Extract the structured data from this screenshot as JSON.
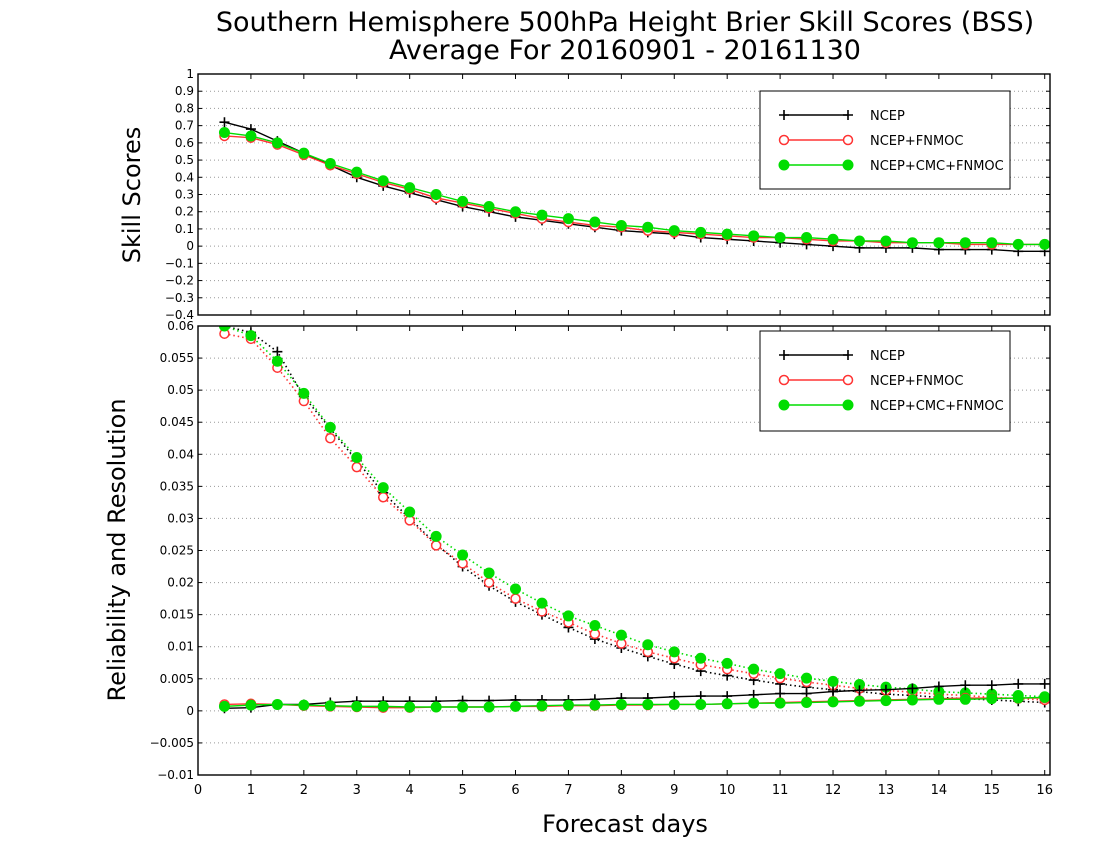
{
  "chart_data": [
    {
      "type": "line",
      "title": "Southern Hemisphere 500hPa Height Brier Skill Scores (BSS)",
      "subtitle": "Average For 20160901 - 20161130",
      "xlabel": "Forecast days",
      "ylabel": "Skill Scores",
      "xlim": [
        0,
        16.1
      ],
      "ylim": [
        -0.4,
        1
      ],
      "x_ticks": [
        "0",
        "1",
        "2",
        "3",
        "4",
        "5",
        "6",
        "7",
        "8",
        "9",
        "10",
        "11",
        "12",
        "13",
        "14",
        "15",
        "16"
      ],
      "y_ticks": [
        "1",
        "0.9",
        "0.8",
        "0.7",
        "0.6",
        "0.5",
        "0.4",
        "0.3",
        "0.2",
        "0.1",
        "0",
        "−0.1",
        "−0.2",
        "−0.3",
        "−0.4"
      ],
      "grid": "horizontal dotted",
      "legend_position": "top-right",
      "x": [
        0.5,
        1,
        1.5,
        2,
        2.5,
        3,
        3.5,
        4,
        4.5,
        5,
        5.5,
        6,
        6.5,
        7,
        7.5,
        8,
        8.5,
        9,
        9.5,
        10,
        10.5,
        11,
        11.5,
        12,
        12.5,
        13,
        13.5,
        14,
        14.5,
        15,
        15.5,
        16
      ],
      "series": [
        {
          "name": "NCEP",
          "color": "#000000",
          "marker": "plus",
          "values": [
            0.72,
            0.68,
            0.61,
            0.54,
            0.47,
            0.4,
            0.35,
            0.31,
            0.27,
            0.23,
            0.2,
            0.17,
            0.15,
            0.13,
            0.11,
            0.09,
            0.08,
            0.07,
            0.05,
            0.04,
            0.03,
            0.02,
            0.01,
            0.0,
            -0.01,
            -0.01,
            -0.01,
            -0.02,
            -0.02,
            -0.02,
            -0.03,
            -0.03
          ]
        },
        {
          "name": "NCEP+FNMOC",
          "color": "#ff3333",
          "marker": "open-circle",
          "values": [
            0.64,
            0.63,
            0.59,
            0.53,
            0.47,
            0.42,
            0.37,
            0.33,
            0.28,
            0.25,
            0.22,
            0.19,
            0.16,
            0.14,
            0.12,
            0.11,
            0.09,
            0.08,
            0.07,
            0.06,
            0.05,
            0.05,
            0.04,
            0.03,
            0.03,
            0.02,
            0.02,
            0.02,
            0.01,
            0.01,
            0.01,
            0.01
          ]
        },
        {
          "name": "NCEP+CMC+FNMOC",
          "color": "#00dd00",
          "marker": "filled-circle",
          "values": [
            0.66,
            0.64,
            0.6,
            0.54,
            0.48,
            0.43,
            0.38,
            0.34,
            0.3,
            0.26,
            0.23,
            0.2,
            0.18,
            0.16,
            0.14,
            0.12,
            0.11,
            0.09,
            0.08,
            0.07,
            0.06,
            0.05,
            0.05,
            0.04,
            0.03,
            0.03,
            0.02,
            0.02,
            0.02,
            0.02,
            0.01,
            0.01
          ]
        }
      ]
    },
    {
      "type": "line",
      "xlabel": "Forecast days",
      "ylabel": "Reliability and Resolution",
      "xlim": [
        0,
        16.1
      ],
      "ylim": [
        -0.01,
        0.06
      ],
      "x_ticks": [
        "0",
        "1",
        "2",
        "3",
        "4",
        "5",
        "6",
        "7",
        "8",
        "9",
        "10",
        "11",
        "12",
        "13",
        "14",
        "15",
        "16"
      ],
      "y_ticks": [
        "0.06",
        "0.055",
        "0.05",
        "0.045",
        "0.04",
        "0.035",
        "0.03",
        "0.025",
        "0.02",
        "0.015",
        "0.01",
        "0.005",
        "0",
        "−0.005",
        "−0.01"
      ],
      "grid": "horizontal dotted",
      "legend_position": "top-right",
      "x": [
        0.5,
        1,
        1.5,
        2,
        2.5,
        3,
        3.5,
        4,
        4.5,
        5,
        5.5,
        6,
        6.5,
        7,
        7.5,
        8,
        8.5,
        9,
        9.5,
        10,
        10.5,
        11,
        11.5,
        12,
        12.5,
        13,
        13.5,
        14,
        14.5,
        15,
        15.5,
        16
      ],
      "series": [
        {
          "name": "NCEP",
          "color": "#000000",
          "marker": "plus",
          "component": "resolution",
          "line": "dotted",
          "values": [
            0.06,
            0.059,
            0.056,
            0.049,
            0.044,
            0.039,
            0.034,
            0.03,
            0.026,
            0.0225,
            0.0195,
            0.017,
            0.015,
            0.013,
            0.0112,
            0.0098,
            0.0085,
            0.0073,
            0.0062,
            0.0055,
            0.0048,
            0.0042,
            0.0037,
            0.0033,
            0.003,
            0.0026,
            0.0024,
            0.0021,
            0.0019,
            0.0017,
            0.0015,
            0.0013
          ]
        },
        {
          "name": "NCEP+FNMOC",
          "color": "#ff3333",
          "marker": "open-circle",
          "component": "resolution",
          "line": "dotted",
          "values": [
            0.0588,
            0.058,
            0.0535,
            0.0483,
            0.0425,
            0.038,
            0.0333,
            0.0297,
            0.0258,
            0.023,
            0.02,
            0.0175,
            0.0155,
            0.0138,
            0.012,
            0.0105,
            0.0092,
            0.0082,
            0.0072,
            0.0065,
            0.0058,
            0.0051,
            0.0045,
            0.004,
            0.0035,
            0.0032,
            0.0029,
            0.0026,
            0.0024,
            0.0021,
            0.0019,
            0.0017
          ]
        },
        {
          "name": "NCEP+CMC+FNMOC",
          "color": "#00dd00",
          "marker": "filled-circle",
          "component": "resolution",
          "line": "dotted",
          "values": [
            0.06,
            0.0585,
            0.0545,
            0.0495,
            0.0442,
            0.0395,
            0.0348,
            0.031,
            0.0272,
            0.0243,
            0.0215,
            0.019,
            0.0168,
            0.0148,
            0.0133,
            0.0118,
            0.0103,
            0.0092,
            0.0082,
            0.0074,
            0.0065,
            0.0058,
            0.0051,
            0.0046,
            0.0041,
            0.0037,
            0.0034,
            0.003,
            0.0028,
            0.0026,
            0.0024,
            0.0022
          ]
        },
        {
          "name": "NCEP",
          "color": "#000000",
          "marker": "plus",
          "component": "reliability",
          "line": "solid",
          "values": [
            0.0004,
            0.0005,
            0.001,
            0.001,
            0.0013,
            0.0015,
            0.0015,
            0.0015,
            0.0015,
            0.0016,
            0.0016,
            0.0017,
            0.0017,
            0.0017,
            0.0018,
            0.002,
            0.002,
            0.0022,
            0.0023,
            0.0023,
            0.0025,
            0.0027,
            0.0027,
            0.003,
            0.0032,
            0.0033,
            0.0035,
            0.0038,
            0.004,
            0.004,
            0.0042,
            0.0042
          ]
        },
        {
          "name": "NCEP+FNMOC",
          "color": "#ff3333",
          "marker": "open-circle",
          "component": "reliability",
          "line": "solid",
          "values": [
            0.001,
            0.0011,
            0.001,
            0.0008,
            0.0007,
            0.0006,
            0.0005,
            0.0005,
            0.0006,
            0.0006,
            0.0006,
            0.0007,
            0.0007,
            0.0008,
            0.0008,
            0.0009,
            0.0009,
            0.001,
            0.001,
            0.0011,
            0.0012,
            0.0013,
            0.0014,
            0.0015,
            0.0016,
            0.0017,
            0.0018,
            0.0019,
            0.002,
            0.002,
            0.002,
            0.002
          ]
        },
        {
          "name": "NCEP+CMC+FNMOC",
          "color": "#00dd00",
          "marker": "filled-circle",
          "component": "reliability",
          "line": "solid",
          "values": [
            0.0007,
            0.0009,
            0.001,
            0.0009,
            0.0008,
            0.0007,
            0.0007,
            0.0006,
            0.0006,
            0.0006,
            0.0006,
            0.0007,
            0.0008,
            0.0009,
            0.0009,
            0.001,
            0.001,
            0.001,
            0.001,
            0.0011,
            0.0012,
            0.0012,
            0.0013,
            0.0014,
            0.0015,
            0.0016,
            0.0017,
            0.0018,
            0.0018,
            0.0019,
            0.002,
            0.0021
          ]
        }
      ]
    }
  ]
}
